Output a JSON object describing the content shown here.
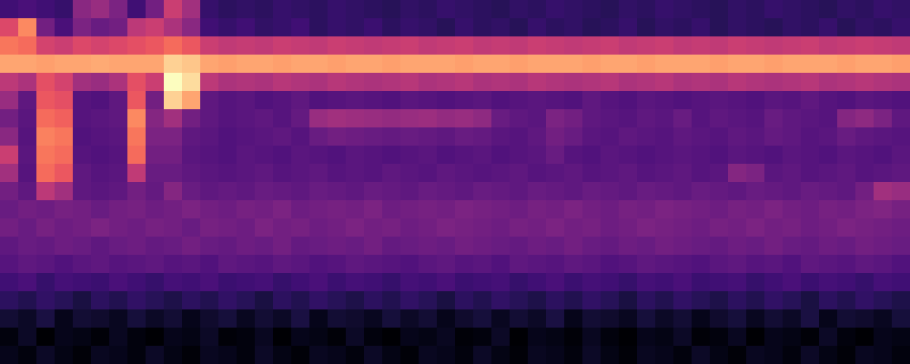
{
  "chart_data": {
    "type": "heatmap",
    "tick_labels": false,
    "z": [
      [
        30,
        32,
        30,
        28,
        45,
        48,
        42,
        30,
        40,
        58,
        50,
        28,
        26,
        27,
        26,
        28,
        27,
        26,
        28,
        27,
        26,
        25,
        27,
        26,
        28,
        27,
        26,
        25,
        27,
        26,
        28,
        27,
        26,
        25,
        27,
        26,
        28,
        27,
        26,
        25,
        27,
        26,
        28,
        27,
        26,
        25,
        27,
        26,
        28,
        27
      ],
      [
        62,
        75,
        40,
        32,
        42,
        38,
        40,
        55,
        58,
        52,
        45,
        30,
        28,
        30,
        27,
        28,
        30,
        26,
        28,
        27,
        29,
        26,
        28,
        27,
        25,
        28,
        26,
        27,
        25,
        28,
        26,
        27,
        25,
        26,
        28,
        25,
        27,
        26,
        28,
        25,
        27,
        26,
        25,
        27,
        26,
        28,
        25,
        27,
        26,
        28
      ],
      [
        72,
        70,
        60,
        58,
        62,
        60,
        62,
        64,
        66,
        70,
        66,
        58,
        56,
        57,
        56,
        58,
        57,
        56,
        58,
        57,
        56,
        57,
        58,
        56,
        57,
        58,
        56,
        57,
        56,
        58,
        57,
        56,
        57,
        58,
        56,
        57,
        58,
        56,
        57,
        56,
        58,
        57,
        56,
        57,
        58,
        56,
        57,
        58,
        57,
        56
      ],
      [
        80,
        80,
        79,
        80,
        80,
        81,
        80,
        80,
        80,
        88,
        86,
        80,
        79,
        80,
        80,
        79,
        80,
        80,
        79,
        80,
        80,
        79,
        80,
        80,
        80,
        79,
        80,
        80,
        79,
        80,
        80,
        80,
        79,
        80,
        80,
        79,
        80,
        80,
        80,
        79,
        80,
        80,
        79,
        80,
        80,
        80,
        79,
        80,
        80,
        79
      ],
      [
        55,
        52,
        64,
        60,
        50,
        48,
        52,
        64,
        58,
        96,
        90,
        55,
        52,
        53,
        52,
        54,
        53,
        52,
        54,
        53,
        52,
        53,
        54,
        52,
        53,
        54,
        52,
        53,
        52,
        54,
        53,
        52,
        53,
        54,
        52,
        53,
        54,
        52,
        53,
        52,
        54,
        53,
        52,
        53,
        54,
        52,
        53,
        54,
        53,
        52
      ],
      [
        48,
        36,
        66,
        64,
        34,
        33,
        36,
        66,
        40,
        88,
        80,
        36,
        34,
        35,
        33,
        34,
        36,
        33,
        34,
        35,
        34,
        33,
        35,
        34,
        33,
        34,
        35,
        33,
        34,
        35,
        34,
        33,
        36,
        34,
        33,
        35,
        34,
        33,
        34,
        35,
        34,
        33,
        35,
        34,
        36,
        34,
        33,
        35,
        34,
        33
      ],
      [
        40,
        35,
        70,
        68,
        34,
        35,
        36,
        75,
        44,
        50,
        40,
        36,
        34,
        35,
        36,
        34,
        37,
        48,
        50,
        49,
        48,
        47,
        48,
        49,
        47,
        48,
        46,
        38,
        36,
        35,
        42,
        40,
        36,
        35,
        34,
        36,
        35,
        38,
        34,
        36,
        35,
        34,
        38,
        36,
        35,
        34,
        44,
        46,
        42,
        36
      ],
      [
        45,
        34,
        74,
        72,
        33,
        34,
        35,
        72,
        42,
        42,
        36,
        35,
        33,
        34,
        35,
        36,
        34,
        38,
        40,
        39,
        38,
        37,
        38,
        37,
        36,
        38,
        37,
        35,
        34,
        36,
        40,
        38,
        35,
        34,
        36,
        35,
        34,
        36,
        35,
        34,
        36,
        35,
        37,
        36,
        34,
        35,
        38,
        36,
        35,
        34
      ],
      [
        58,
        35,
        72,
        70,
        34,
        33,
        34,
        70,
        40,
        40,
        35,
        34,
        33,
        35,
        34,
        33,
        35,
        34,
        33,
        35,
        34,
        33,
        34,
        35,
        33,
        34,
        35,
        33,
        34,
        35,
        38,
        34,
        33,
        35,
        34,
        33,
        34,
        35,
        34,
        33,
        35,
        34,
        33,
        35,
        34,
        33,
        35,
        34,
        33,
        35
      ],
      [
        50,
        34,
        70,
        66,
        36,
        34,
        35,
        56,
        38,
        38,
        36,
        35,
        34,
        35,
        36,
        34,
        35,
        36,
        34,
        35,
        34,
        36,
        35,
        34,
        36,
        35,
        34,
        35,
        36,
        34,
        35,
        36,
        34,
        35,
        36,
        34,
        35,
        36,
        34,
        35,
        44,
        42,
        35,
        36,
        34,
        35,
        36,
        34,
        35,
        36
      ],
      [
        40,
        36,
        55,
        50,
        36,
        35,
        36,
        40,
        37,
        44,
        38,
        36,
        37,
        36,
        38,
        37,
        36,
        38,
        37,
        36,
        38,
        37,
        36,
        38,
        37,
        36,
        38,
        37,
        36,
        38,
        37,
        36,
        38,
        37,
        36,
        38,
        37,
        36,
        38,
        37,
        36,
        38,
        37,
        36,
        38,
        37,
        36,
        40,
        50,
        48
      ],
      [
        38,
        40,
        39,
        41,
        40,
        38,
        40,
        41,
        39,
        40,
        42,
        40,
        39,
        41,
        40,
        42,
        39,
        40,
        41,
        40,
        42,
        39,
        40,
        41,
        40,
        42,
        41,
        40,
        39,
        41,
        40,
        42,
        40,
        39,
        41,
        40,
        42,
        41,
        40,
        39,
        41,
        40,
        42,
        40,
        39,
        41,
        40,
        42,
        43,
        41
      ],
      [
        40,
        38,
        41,
        39,
        40,
        42,
        40,
        39,
        41,
        40,
        38,
        41,
        40,
        39,
        42,
        40,
        41,
        39,
        40,
        42,
        40,
        41,
        39,
        40,
        42,
        41,
        40,
        39,
        41,
        40,
        42,
        40,
        41,
        39,
        40,
        42,
        41,
        40,
        39,
        41,
        40,
        42,
        40,
        41,
        39,
        40,
        42,
        41,
        40,
        39
      ],
      [
        36,
        38,
        37,
        39,
        38,
        36,
        38,
        39,
        37,
        38,
        40,
        38,
        37,
        39,
        38,
        40,
        37,
        38,
        39,
        38,
        40,
        37,
        38,
        39,
        38,
        40,
        39,
        38,
        37,
        39,
        38,
        40,
        38,
        37,
        39,
        38,
        40,
        39,
        38,
        37,
        39,
        38,
        40,
        38,
        37,
        39,
        38,
        40,
        39,
        38
      ],
      [
        34,
        36,
        35,
        33,
        35,
        36,
        34,
        35,
        36,
        34,
        35,
        33,
        36,
        35,
        34,
        36,
        35,
        33,
        34,
        36,
        35,
        34,
        33,
        35,
        36,
        34,
        35,
        33,
        36,
        35,
        34,
        36,
        35,
        33,
        34,
        36,
        35,
        34,
        33,
        35,
        36,
        34,
        35,
        33,
        36,
        35,
        34,
        36,
        35,
        33
      ],
      [
        30,
        32,
        28,
        31,
        30,
        29,
        32,
        30,
        28,
        31,
        30,
        32,
        29,
        30,
        31,
        28,
        30,
        32,
        29,
        31,
        30,
        28,
        31,
        30,
        32,
        29,
        30,
        31,
        28,
        30,
        32,
        29,
        31,
        30,
        28,
        31,
        30,
        32,
        29,
        30,
        31,
        28,
        30,
        32,
        29,
        31,
        30,
        28,
        31,
        30
      ],
      [
        26,
        24,
        27,
        25,
        22,
        26,
        24,
        27,
        25,
        23,
        26,
        24,
        27,
        25,
        22,
        26,
        24,
        27,
        25,
        23,
        26,
        24,
        27,
        25,
        22,
        26,
        24,
        27,
        25,
        23,
        26,
        24,
        27,
        25,
        22,
        26,
        24,
        27,
        25,
        23,
        26,
        24,
        27,
        25,
        22,
        26,
        24,
        27,
        25,
        23
      ],
      [
        20,
        18,
        22,
        16,
        20,
        19,
        17,
        21,
        18,
        20,
        16,
        19,
        21,
        17,
        20,
        18,
        22,
        16,
        20,
        19,
        17,
        21,
        18,
        20,
        16,
        19,
        21,
        17,
        20,
        18,
        22,
        16,
        20,
        19,
        17,
        21,
        18,
        20,
        16,
        19,
        21,
        17,
        20,
        18,
        22,
        16,
        20,
        19,
        17,
        21
      ],
      [
        14,
        18,
        12,
        16,
        15,
        13,
        17,
        14,
        12,
        16,
        15,
        18,
        13,
        14,
        17,
        12,
        16,
        15,
        13,
        18,
        14,
        12,
        16,
        15,
        17,
        13,
        14,
        18,
        12,
        16,
        15,
        13,
        17,
        14,
        12,
        16,
        15,
        18,
        13,
        14,
        17,
        12,
        16,
        15,
        13,
        18,
        14,
        12,
        16,
        15
      ],
      [
        16,
        14,
        18,
        15,
        13,
        17,
        16,
        14,
        18,
        15,
        13,
        17,
        16,
        14,
        18,
        15,
        13,
        17,
        16,
        14,
        18,
        15,
        13,
        17,
        16,
        14,
        18,
        15,
        13,
        17,
        16,
        14,
        18,
        15,
        13,
        17,
        16,
        14,
        18,
        15,
        13,
        17,
        16,
        14,
        18,
        15,
        13,
        17,
        16,
        14
      ]
    ]
  }
}
